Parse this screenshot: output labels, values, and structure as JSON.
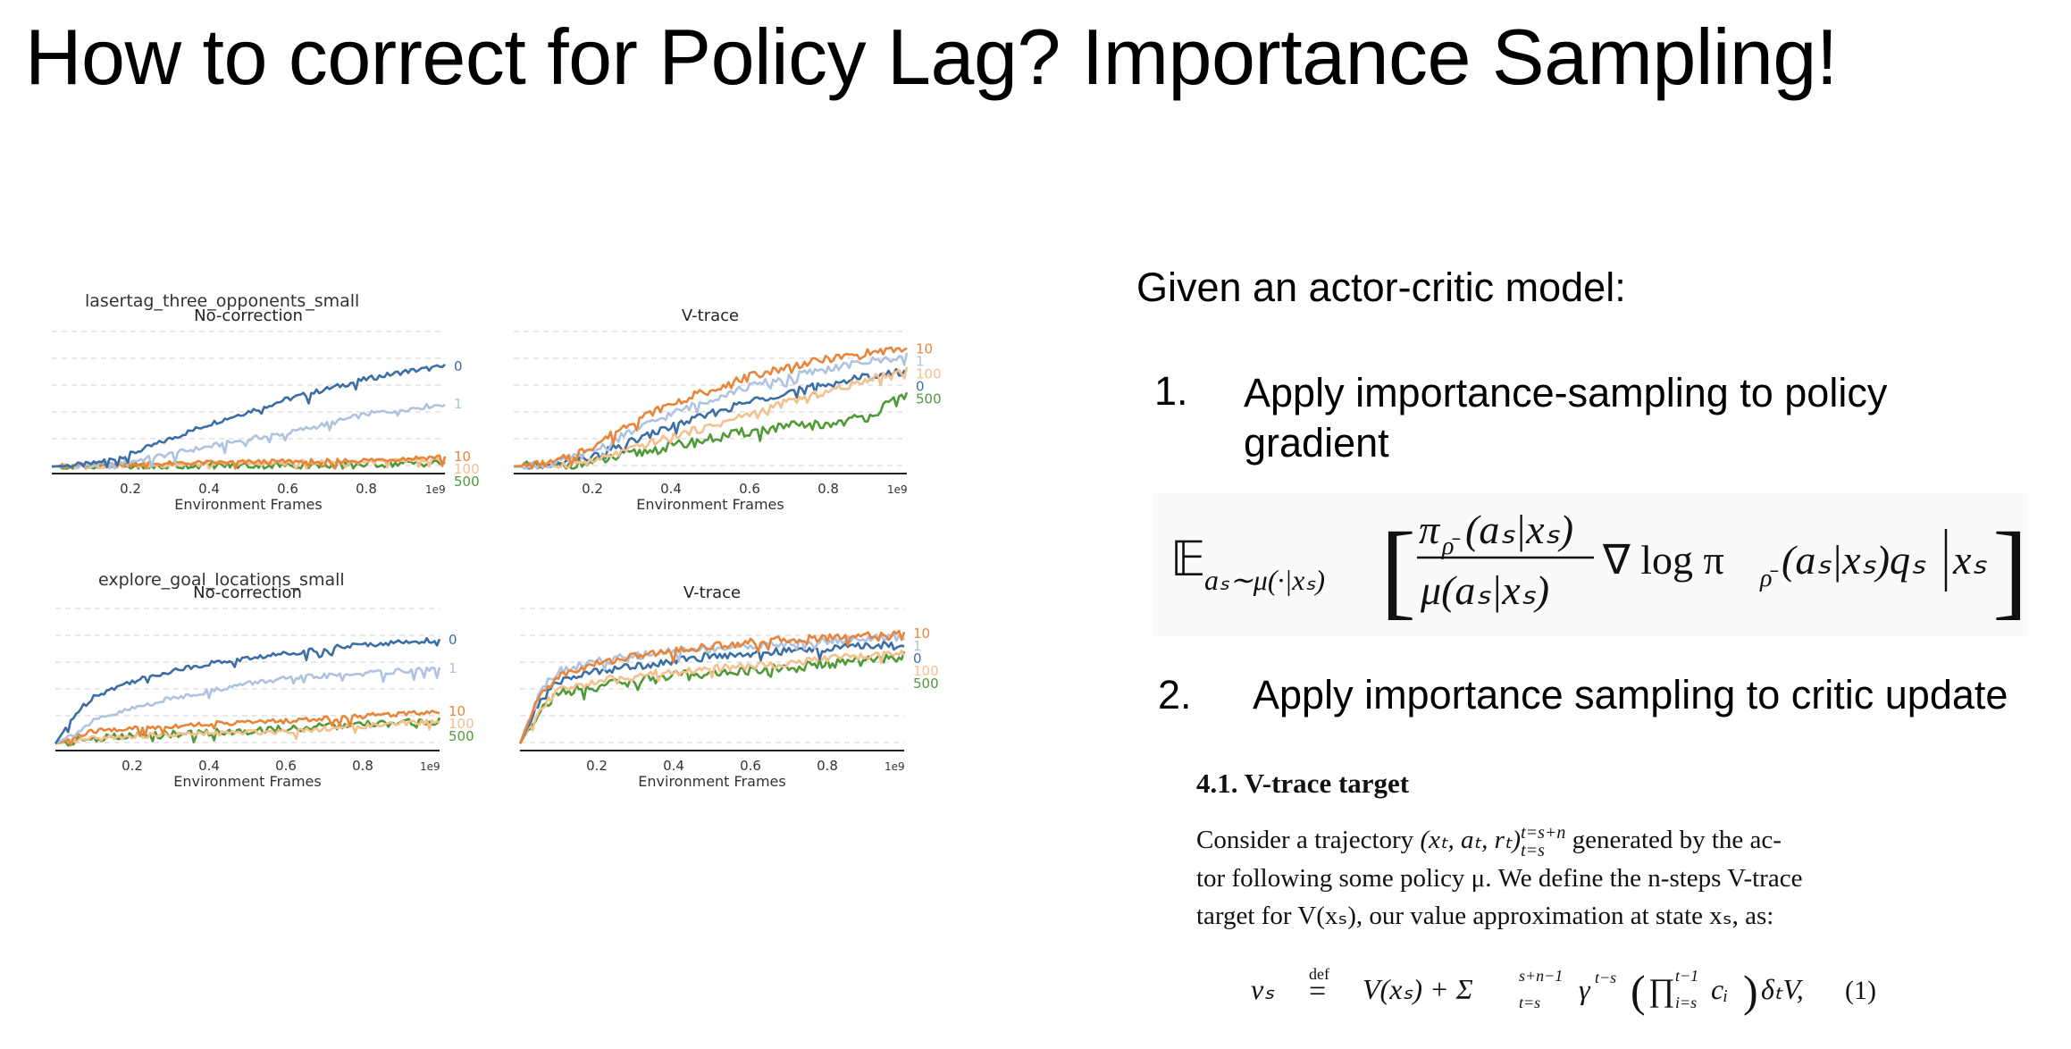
{
  "slide": {
    "title": "How to correct for Policy Lag? Importance Sampling!"
  },
  "chart_data": [
    {
      "type": "line",
      "group_title": "lasertag_three_opponents_small",
      "title": "No-correction",
      "xlabel": "Environment Frames",
      "x_multiplier": "1e9",
      "x_ticks": [
        "0.2",
        "0.4",
        "0.6",
        "0.8"
      ],
      "xlim": [
        0,
        1.0
      ],
      "grid": "horizontal dashed",
      "series": [
        {
          "name": "0",
          "color": "#3a6ea5",
          "x": [
            0,
            0.1,
            0.2,
            0.3,
            0.4,
            0.5,
            0.6,
            0.7,
            0.8,
            0.9,
            1.0
          ],
          "y": [
            0.02,
            0.04,
            0.12,
            0.24,
            0.36,
            0.46,
            0.56,
            0.64,
            0.72,
            0.78,
            0.82
          ]
        },
        {
          "name": "1",
          "color": "#aec3e0",
          "x": [
            0,
            0.1,
            0.2,
            0.3,
            0.4,
            0.5,
            0.6,
            0.7,
            0.8,
            0.9,
            1.0
          ],
          "y": [
            0.02,
            0.03,
            0.06,
            0.12,
            0.18,
            0.24,
            0.29,
            0.36,
            0.44,
            0.48,
            0.52
          ]
        },
        {
          "name": "10",
          "color": "#e8853b",
          "x": [
            0,
            0.2,
            0.4,
            0.6,
            0.8,
            1.0
          ],
          "y": [
            0.02,
            0.04,
            0.05,
            0.06,
            0.07,
            0.1
          ]
        },
        {
          "name": "100",
          "color": "#f4c08d",
          "x": [
            0,
            0.2,
            0.4,
            0.6,
            0.8,
            1.0
          ],
          "y": [
            0.02,
            0.03,
            0.04,
            0.05,
            0.06,
            0.07
          ]
        },
        {
          "name": "500",
          "color": "#4f9a36",
          "x": [
            0,
            0.2,
            0.4,
            0.6,
            0.8,
            1.0
          ],
          "y": [
            0.02,
            0.02,
            0.03,
            0.03,
            0.04,
            0.05
          ]
        }
      ]
    },
    {
      "type": "line",
      "title": "V-trace",
      "xlabel": "Environment Frames",
      "x_multiplier": "1e9",
      "x_ticks": [
        "0.2",
        "0.4",
        "0.6",
        "0.8"
      ],
      "xlim": [
        0,
        1.0
      ],
      "grid": "horizontal dashed",
      "series": [
        {
          "name": "10",
          "color": "#e8853b",
          "x": [
            0,
            0.1,
            0.2,
            0.3,
            0.4,
            0.5,
            0.6,
            0.7,
            0.8,
            0.9,
            1.0
          ],
          "y": [
            0.02,
            0.05,
            0.18,
            0.38,
            0.52,
            0.64,
            0.74,
            0.82,
            0.88,
            0.93,
            0.96
          ]
        },
        {
          "name": "1",
          "color": "#aec3e0",
          "x": [
            0,
            0.1,
            0.2,
            0.3,
            0.4,
            0.5,
            0.6,
            0.7,
            0.8,
            0.9,
            1.0
          ],
          "y": [
            0.02,
            0.04,
            0.14,
            0.3,
            0.44,
            0.56,
            0.66,
            0.74,
            0.8,
            0.86,
            0.9
          ]
        },
        {
          "name": "100",
          "color": "#f4c08d",
          "x": [
            0,
            0.1,
            0.2,
            0.3,
            0.4,
            0.5,
            0.6,
            0.7,
            0.8,
            0.9,
            1.0
          ],
          "y": [
            0.02,
            0.03,
            0.06,
            0.16,
            0.26,
            0.34,
            0.44,
            0.54,
            0.62,
            0.72,
            0.8
          ]
        },
        {
          "name": "0",
          "color": "#3a6ea5",
          "x": [
            0,
            0.1,
            0.2,
            0.3,
            0.4,
            0.5,
            0.6,
            0.7,
            0.8,
            0.9,
            1.0
          ],
          "y": [
            0.02,
            0.03,
            0.1,
            0.22,
            0.34,
            0.44,
            0.54,
            0.62,
            0.68,
            0.74,
            0.78
          ]
        },
        {
          "name": "500",
          "color": "#4f9a36",
          "x": [
            0,
            0.1,
            0.2,
            0.3,
            0.4,
            0.5,
            0.6,
            0.7,
            0.8,
            0.9,
            1.0
          ],
          "y": [
            0.02,
            0.02,
            0.05,
            0.12,
            0.18,
            0.24,
            0.3,
            0.34,
            0.36,
            0.42,
            0.6
          ]
        }
      ]
    },
    {
      "type": "line",
      "group_title": "explore_goal_locations_small",
      "title": "No-correction",
      "xlabel": "Environment Frames",
      "x_multiplier": "1e9",
      "x_ticks": [
        "0.2",
        "0.4",
        "0.6",
        "0.8"
      ],
      "xlim": [
        0,
        1.0
      ],
      "grid": "horizontal dashed",
      "series": [
        {
          "name": "0",
          "color": "#3a6ea5",
          "x": [
            0,
            0.05,
            0.1,
            0.2,
            0.3,
            0.4,
            0.5,
            0.6,
            0.7,
            0.8,
            0.9,
            1.0
          ],
          "y": [
            0.02,
            0.25,
            0.4,
            0.52,
            0.6,
            0.66,
            0.7,
            0.74,
            0.78,
            0.81,
            0.83,
            0.85
          ]
        },
        {
          "name": "1",
          "color": "#aec3e0",
          "x": [
            0,
            0.05,
            0.1,
            0.2,
            0.3,
            0.4,
            0.5,
            0.6,
            0.7,
            0.8,
            0.9,
            1.0
          ],
          "y": [
            0.02,
            0.1,
            0.2,
            0.3,
            0.38,
            0.44,
            0.5,
            0.54,
            0.56,
            0.58,
            0.6,
            0.62
          ]
        },
        {
          "name": "10",
          "color": "#e8853b",
          "x": [
            0,
            0.1,
            0.2,
            0.4,
            0.6,
            0.8,
            1.0
          ],
          "y": [
            0.02,
            0.12,
            0.14,
            0.18,
            0.2,
            0.24,
            0.28
          ]
        },
        {
          "name": "100",
          "color": "#f4c08d",
          "x": [
            0,
            0.1,
            0.2,
            0.4,
            0.6,
            0.8,
            1.0
          ],
          "y": [
            0.02,
            0.06,
            0.08,
            0.1,
            0.12,
            0.16,
            0.2
          ]
        },
        {
          "name": "500",
          "color": "#4f9a36",
          "x": [
            0,
            0.1,
            0.2,
            0.4,
            0.6,
            0.8,
            1.0
          ],
          "y": [
            0.02,
            0.06,
            0.08,
            0.11,
            0.14,
            0.17,
            0.2
          ]
        }
      ]
    },
    {
      "type": "line",
      "title": "V-trace",
      "xlabel": "Environment Frames",
      "x_multiplier": "1e9",
      "x_ticks": [
        "0.2",
        "0.4",
        "0.6",
        "0.8"
      ],
      "xlim": [
        0,
        1.0
      ],
      "grid": "horizontal dashed",
      "series": [
        {
          "name": "10",
          "color": "#e8853b",
          "x": [
            0,
            0.05,
            0.1,
            0.2,
            0.3,
            0.4,
            0.5,
            0.6,
            0.7,
            0.8,
            0.9,
            1.0
          ],
          "y": [
            0.02,
            0.4,
            0.56,
            0.66,
            0.72,
            0.76,
            0.8,
            0.83,
            0.85,
            0.87,
            0.89,
            0.9
          ]
        },
        {
          "name": "1",
          "color": "#aec3e0",
          "x": [
            0,
            0.05,
            0.1,
            0.2,
            0.3,
            0.4,
            0.5,
            0.6,
            0.7,
            0.8,
            0.9,
            1.0
          ],
          "y": [
            0.02,
            0.45,
            0.6,
            0.68,
            0.72,
            0.76,
            0.78,
            0.8,
            0.82,
            0.84,
            0.86,
            0.87
          ]
        },
        {
          "name": "0",
          "color": "#3a6ea5",
          "x": [
            0,
            0.05,
            0.1,
            0.2,
            0.3,
            0.4,
            0.5,
            0.6,
            0.7,
            0.8,
            0.9,
            1.0
          ],
          "y": [
            0.02,
            0.35,
            0.52,
            0.6,
            0.64,
            0.68,
            0.72,
            0.74,
            0.76,
            0.78,
            0.8,
            0.82
          ]
        },
        {
          "name": "100",
          "color": "#f4c08d",
          "x": [
            0,
            0.05,
            0.1,
            0.2,
            0.3,
            0.4,
            0.5,
            0.6,
            0.7,
            0.8,
            0.9,
            1.0
          ],
          "y": [
            0.02,
            0.3,
            0.44,
            0.52,
            0.56,
            0.6,
            0.62,
            0.64,
            0.66,
            0.7,
            0.72,
            0.74
          ]
        },
        {
          "name": "500",
          "color": "#4f9a36",
          "x": [
            0,
            0.05,
            0.1,
            0.2,
            0.3,
            0.4,
            0.5,
            0.6,
            0.7,
            0.8,
            0.9,
            1.0
          ],
          "y": [
            0.02,
            0.28,
            0.42,
            0.48,
            0.52,
            0.56,
            0.58,
            0.6,
            0.62,
            0.66,
            0.68,
            0.72
          ]
        }
      ]
    }
  ],
  "right": {
    "intro": "Given an actor-critic model:",
    "item1_num": "1.",
    "item1_text": "Apply importance-sampling to policy gradient",
    "item2_num": "2.",
    "item2_text": "Apply importance sampling to critic update"
  },
  "formula1": {
    "expectation": "𝔼",
    "subscript": "aₛ∼μ(·|xₛ)",
    "numerator": "π",
    "numerator_sub": "ρ̄",
    "numerator_args": "(aₛ|xₛ)",
    "denominator": "μ(aₛ|xₛ)",
    "rest": "∇ log π",
    "rest_sub": "ρ̄",
    "rest_args": "(aₛ|xₛ)qₛ",
    "condition": "xₛ"
  },
  "paper": {
    "heading": "4.1. V-trace target",
    "line1_pre": "Consider a trajectory ",
    "line1_math": "(xₜ, aₜ, rₜ)",
    "line1_sup": "t=s+n",
    "line1_sub": "t=s",
    "line1_post": " generated by the ac-",
    "line2": "tor following some policy μ. We define the n-steps V-trace",
    "line3": "target for V(xₛ), our value approximation at state xₛ, as:",
    "eq_lhs": "vₛ",
    "eq_def_top": "def",
    "eq_def": "=",
    "eq_rhs": "V(xₛ) + Σ",
    "eq_sum_top": "s+n−1",
    "eq_sum_bot": "t=s",
    "eq_rhs2": "γ",
    "eq_gamma_sup": "t−s",
    "eq_prod_open": "(",
    "eq_prod": "∏",
    "eq_prod_top": "t−1",
    "eq_prod_bot": "i=s",
    "eq_ci": "cᵢ",
    "eq_prod_close": ")",
    "eq_delta": "δₜV,",
    "eq_num": "(1)"
  }
}
